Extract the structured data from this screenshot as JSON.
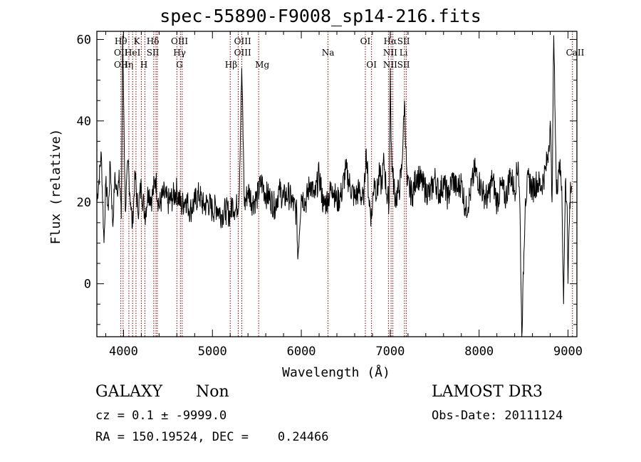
{
  "chart_data": {
    "type": "line",
    "title": "spec-55890-F9008_sp14-216.fits",
    "xlabel": "Wavelength (Å)",
    "ylabel": "Flux (relative)",
    "xlim": [
      3700,
      9100
    ],
    "ylim": [
      -13,
      62
    ],
    "xticks": [
      4000,
      5000,
      6000,
      7000,
      8000,
      9000
    ],
    "yticks": [
      0,
      20,
      40,
      60
    ],
    "grid": false,
    "legend": "none",
    "series": [
      {
        "name": "flux",
        "x": [
          3700,
          3750,
          3780,
          3800,
          3830,
          3850,
          3880,
          3900,
          3930,
          3950,
          3975,
          3990,
          4020,
          4050,
          4080,
          4100,
          4130,
          4160,
          4200,
          4240,
          4280,
          4320,
          4360,
          4400,
          4450,
          4500,
          4550,
          4600,
          4650,
          4700,
          4750,
          4800,
          4850,
          4900,
          4950,
          5000,
          5050,
          5100,
          5150,
          5200,
          5230,
          5260,
          5300,
          5330,
          5360,
          5400,
          5450,
          5500,
          5550,
          5600,
          5650,
          5700,
          5750,
          5800,
          5850,
          5900,
          5950,
          5960,
          6000,
          6050,
          6100,
          6150,
          6200,
          6250,
          6300,
          6350,
          6400,
          6450,
          6500,
          6550,
          6600,
          6650,
          6700,
          6730,
          6760,
          6790,
          6820,
          6850,
          6880,
          6900,
          6930,
          6960,
          6990,
          7000,
          7010,
          7030,
          7060,
          7100,
          7130,
          7160,
          7190,
          7250,
          7300,
          7350,
          7400,
          7450,
          7500,
          7550,
          7600,
          7650,
          7700,
          7750,
          7800,
          7850,
          7900,
          7950,
          8000,
          8050,
          8100,
          8150,
          8200,
          8250,
          8300,
          8350,
          8400,
          8440,
          8460,
          8480,
          8520,
          8560,
          8600,
          8650,
          8700,
          8750,
          8780,
          8800,
          8820,
          8840,
          8870,
          8900,
          8930,
          8950,
          8970,
          8990,
          9000,
          9020,
          9040
        ],
        "values": [
          20,
          32,
          10,
          25,
          18,
          30,
          14,
          26,
          22,
          28,
          16,
          61,
          18,
          30,
          20,
          14,
          27,
          18,
          24,
          17,
          23,
          21,
          26,
          19,
          22,
          20,
          21,
          23,
          19,
          21,
          18,
          20,
          22,
          19,
          20,
          18,
          19,
          17,
          18,
          17,
          20,
          18,
          21,
          53,
          19,
          23,
          20,
          21,
          25,
          22,
          21,
          19,
          23,
          21,
          22,
          20,
          17,
          6,
          22,
          20,
          25,
          21,
          27,
          19,
          21,
          24,
          20,
          22,
          28,
          24,
          21,
          23,
          20,
          33,
          21,
          16,
          26,
          22,
          27,
          24,
          30,
          22,
          20,
          53,
          35,
          26,
          21,
          23,
          28,
          45,
          24,
          22,
          27,
          25,
          23,
          22,
          26,
          22,
          25,
          21,
          26,
          23,
          25,
          18,
          22,
          28,
          25,
          22,
          21,
          26,
          20,
          24,
          21,
          27,
          23,
          30,
          18,
          -13,
          21,
          26,
          23,
          25,
          24,
          28,
          33,
          40,
          20,
          61,
          22,
          30,
          24,
          -5,
          25,
          19,
          0,
          20,
          24
        ]
      }
    ],
    "annotations": [
      {
        "x": 3970,
        "labels": [
          "Hθ",
          "OII",
          "OII"
        ]
      },
      {
        "x": 4040,
        "labels": [
          "",
          "",
          "Hη"
        ]
      },
      {
        "x": 4102,
        "labels": [
          "",
          "HeI",
          ""
        ]
      },
      {
        "x": 4150,
        "labels": [
          "K",
          "",
          ""
        ]
      },
      {
        "x": 4230,
        "labels": [
          "",
          "",
          "H"
        ]
      },
      {
        "x": 4330,
        "labels": [
          "Hδ",
          "SII",
          ""
        ]
      },
      {
        "x": 4630,
        "labels": [
          "OIII",
          "Hγ",
          "G"
        ]
      },
      {
        "x": 5210,
        "labels": [
          "",
          "",
          "Hβ"
        ]
      },
      {
        "x": 5340,
        "labels": [
          "OIII",
          "OIII",
          ""
        ]
      },
      {
        "x": 5560,
        "labels": [
          "",
          "",
          "Mg"
        ]
      },
      {
        "x": 6300,
        "labels": [
          "",
          "Na",
          ""
        ]
      },
      {
        "x": 6720,
        "labels": [
          "OI",
          "",
          ""
        ]
      },
      {
        "x": 6790,
        "labels": [
          "",
          "",
          "OI"
        ]
      },
      {
        "x": 7000,
        "labels": [
          "Hα",
          "NII",
          "NII"
        ]
      },
      {
        "x": 7150,
        "labels": [
          "SII",
          "Li",
          "SII"
        ]
      },
      {
        "x": 9080,
        "labels": [
          "",
          "CaII",
          ""
        ]
      }
    ],
    "line_markers_x": [
      3970,
      3995,
      4060,
      4102,
      4140,
      4200,
      4240,
      4340,
      4365,
      4380,
      4600,
      4640,
      4660,
      5200,
      5290,
      5330,
      5520,
      6300,
      6720,
      6790,
      6980,
      7010,
      7030,
      7160,
      7180,
      9050
    ],
    "line_marker_color": "#8b0000"
  },
  "info": {
    "object_class": "GALAXY",
    "subclass": "Non",
    "survey": "LAMOST DR3",
    "redshift": "cz = 0.1 ± -9999.0",
    "obs_date": "Obs-Date: 20111124",
    "coords": "RA = 150.19524, DEC =    0.24466"
  }
}
